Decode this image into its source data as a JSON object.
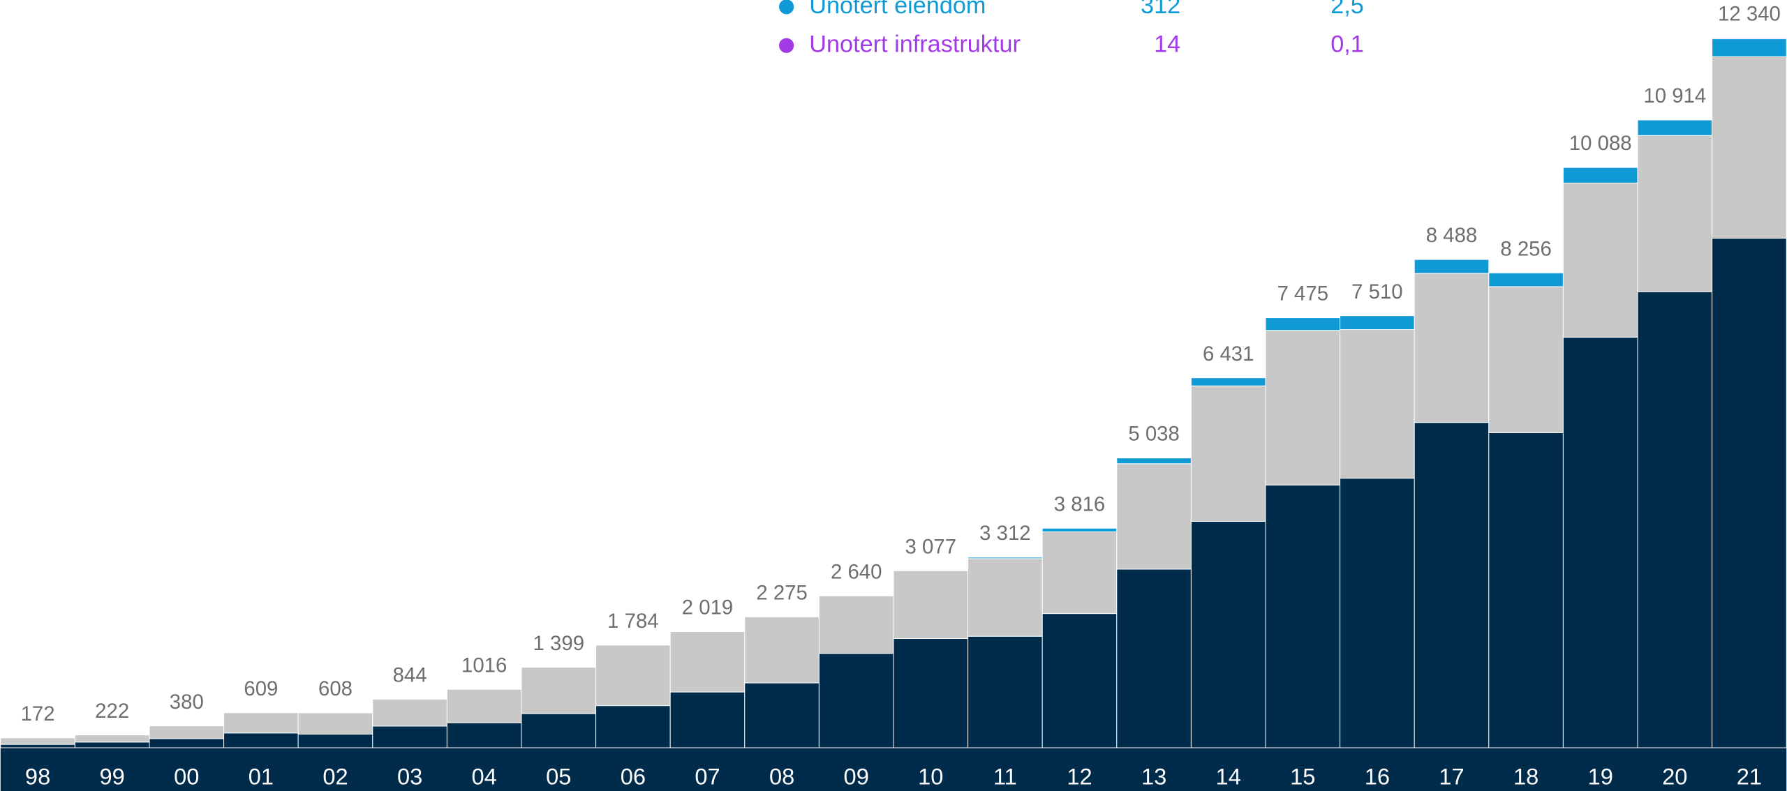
{
  "chart_data": {
    "type": "stacked-bar",
    "categories": [
      "98",
      "99",
      "00",
      "01",
      "02",
      "03",
      "04",
      "05",
      "06",
      "07",
      "08",
      "09",
      "10",
      "11",
      "12",
      "13",
      "14",
      "15",
      "16",
      "17",
      "18",
      "19",
      "20",
      "21"
    ],
    "series": [
      {
        "color": "#002b4b",
        "values": [
          59,
          99,
          158,
          257,
          237,
          376,
          435,
          593,
          732,
          969,
          1127,
          1641,
          1898,
          1938,
          2333,
          3105,
          3935,
          4568,
          4686,
          5655,
          5477,
          7138,
          7929,
          8859
        ]
      },
      {
        "color": "#c8c8c8",
        "values": [
          113,
          123,
          222,
          352,
          371,
          468,
          581,
          806,
          1052,
          1050,
          1148,
          999,
          1179,
          1350,
          1421,
          1833,
          2356,
          2687,
          2584,
          2593,
          2539,
          2680,
          2715,
          3155
        ]
      },
      {
        "name": "Unotert eiendom",
        "color": "#0f9ad6",
        "legend_value": 312,
        "legend_share": {
          "value": 2.5,
          "label": "2,5"
        },
        "values": [
          0,
          0,
          0,
          0,
          0,
          0,
          0,
          0,
          0,
          0,
          0,
          0,
          0,
          24,
          62,
          100,
          140,
          220,
          240,
          240,
          240,
          270,
          270,
          312
        ]
      },
      {
        "name": "Unotert infrastruktur",
        "color": "#a23ae6",
        "legend_value": 14,
        "legend_share": {
          "value": 0.1,
          "label": "0,1"
        },
        "values": [
          0,
          0,
          0,
          0,
          0,
          0,
          0,
          0,
          0,
          0,
          0,
          0,
          0,
          0,
          0,
          0,
          0,
          0,
          0,
          0,
          0,
          0,
          0,
          14
        ]
      }
    ],
    "totals": {
      "values": [
        172,
        222,
        380,
        609,
        608,
        844,
        1016,
        1399,
        1784,
        2019,
        2275,
        2640,
        3077,
        3312,
        3816,
        5038,
        6431,
        7475,
        7510,
        8488,
        8256,
        10088,
        10914,
        12340
      ],
      "value_labels": [
        "172",
        "222",
        "380",
        "609",
        "608",
        "844",
        "1016",
        "1 399",
        "1 784",
        "2 019",
        "2 275",
        "2 640",
        "3 077",
        "3 312",
        "3 816",
        "5 038",
        "6 431",
        "7 475",
        "7 510",
        "8 488",
        "8 256",
        "10 088",
        "10 914",
        "12 340"
      ]
    },
    "ylim": [
      0,
      13000
    ]
  }
}
